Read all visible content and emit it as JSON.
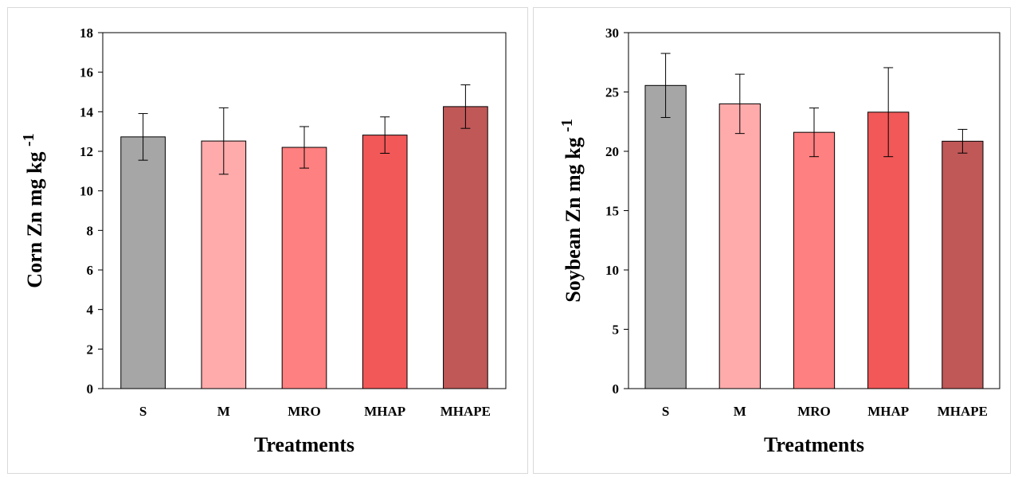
{
  "chart_data": [
    {
      "type": "bar",
      "categories": [
        "S",
        "M",
        "MRO",
        "MHAP",
        "MHAPE"
      ],
      "values": [
        12.73,
        12.52,
        12.2,
        12.82,
        14.26
      ],
      "errors": [
        1.18,
        1.68,
        1.05,
        0.92,
        1.1
      ],
      "colors": [
        "#a6a6a6",
        "#ffabab",
        "#ff8080",
        "#f25858",
        "#c05858"
      ],
      "xlabel": "Treatments",
      "ylabel_main": "Corn Zn mg kg",
      "ylabel_sup": "-1",
      "ylim": [
        0,
        18
      ],
      "yticks": [
        0,
        2,
        4,
        6,
        8,
        10,
        12,
        14,
        16,
        18
      ],
      "grid": false,
      "legend": "none"
    },
    {
      "type": "bar",
      "categories": [
        "S",
        "M",
        "MRO",
        "MHAP",
        "MHAPE"
      ],
      "values": [
        25.55,
        24.0,
        21.6,
        23.3,
        20.85
      ],
      "errors": [
        2.7,
        2.5,
        2.05,
        3.75,
        1.0
      ],
      "colors": [
        "#a6a6a6",
        "#ffabab",
        "#ff8080",
        "#f25858",
        "#c05858"
      ],
      "xlabel": "Treatments",
      "ylabel_main": "Soybean Zn mg kg",
      "ylabel_sup": "-1",
      "ylim": [
        0,
        30
      ],
      "yticks": [
        0,
        5,
        10,
        15,
        20,
        25,
        30
      ],
      "grid": false,
      "legend": "none"
    }
  ]
}
